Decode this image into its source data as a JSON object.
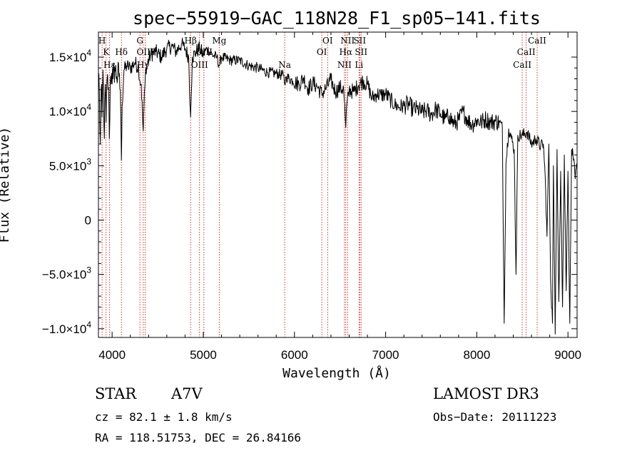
{
  "chart_data": {
    "type": "line",
    "title": "spec−55919−GAC_118N28_F1_sp05−141.fits",
    "xlabel": "Wavelength (Å)",
    "ylabel": "Flux (Relative)",
    "xlim": [
      3850,
      9100
    ],
    "ylim": [
      -10800,
      17300
    ],
    "xticks": [
      {
        "value": 4000,
        "label": "4000"
      },
      {
        "value": 5000,
        "label": "5000"
      },
      {
        "value": 6000,
        "label": "6000"
      },
      {
        "value": 7000,
        "label": "7000"
      },
      {
        "value": 8000,
        "label": "8000"
      },
      {
        "value": 9000,
        "label": "9000"
      }
    ],
    "yticks": [
      {
        "value": 15000,
        "mantissa": "1.5×10",
        "exp": "4"
      },
      {
        "value": 10000,
        "mantissa": "1.0×10",
        "exp": "4"
      },
      {
        "value": 5000,
        "mantissa": "5.0×10",
        "exp": "3"
      },
      {
        "value": 0,
        "mantissa": "0",
        "exp": ""
      },
      {
        "value": -5000,
        "mantissa": "−5.0×10",
        "exp": "3"
      },
      {
        "value": -10000,
        "mantissa": "−1.0×10",
        "exp": "4"
      }
    ],
    "lines": [
      {
        "name": "H",
        "wavelength": 3890,
        "row": 0
      },
      {
        "name": "K",
        "wavelength": 3934,
        "row": 1
      },
      {
        "name": "Hε",
        "wavelength": 3970,
        "row": 2
      },
      {
        "name": "Hδ",
        "wavelength": 4102,
        "row": 1
      },
      {
        "name": "G",
        "wavelength": 4305,
        "row": 0
      },
      {
        "name": "Hγ",
        "wavelength": 4341,
        "row": 2
      },
      {
        "name": "OIII",
        "wavelength": 4363,
        "row": 1
      },
      {
        "name": "Hβ",
        "wavelength": 4861,
        "row": 0
      },
      {
        "name": "OIII",
        "wavelength": 4959,
        "row": 2
      },
      {
        "name": "OIII",
        "wavelength": 5007,
        "row": 1
      },
      {
        "name": "Mg",
        "wavelength": 5175,
        "row": 0
      },
      {
        "name": "Na",
        "wavelength": 5893,
        "row": 2
      },
      {
        "name": "OI",
        "wavelength": 6300,
        "row": 1
      },
      {
        "name": "OI",
        "wavelength": 6364,
        "row": 0
      },
      {
        "name": "NII",
        "wavelength": 6548,
        "row": 2
      },
      {
        "name": "Hα",
        "wavelength": 6563,
        "row": 1
      },
      {
        "name": "NII",
        "wavelength": 6583,
        "row": 0
      },
      {
        "name": "Li",
        "wavelength": 6708,
        "row": 2
      },
      {
        "name": "SII",
        "wavelength": 6716,
        "row": 0
      },
      {
        "name": "SII",
        "wavelength": 6731,
        "row": 1
      },
      {
        "name": "CaII",
        "wavelength": 8498,
        "row": 2
      },
      {
        "name": "CaII",
        "wavelength": 8542,
        "row": 1
      },
      {
        "name": "CaII",
        "wavelength": 8662,
        "row": 0
      }
    ],
    "series": [
      {
        "name": "flux",
        "anchors": [
          [
            3855,
            13500
          ],
          [
            3870,
            7000
          ],
          [
            3885,
            12500
          ],
          [
            3890,
            9500
          ],
          [
            3900,
            13800
          ],
          [
            3915,
            7500
          ],
          [
            3925,
            12500
          ],
          [
            3934,
            9000
          ],
          [
            3945,
            13000
          ],
          [
            3960,
            12200
          ],
          [
            3970,
            7500
          ],
          [
            3980,
            12800
          ],
          [
            3995,
            13500
          ],
          [
            4010,
            13000
          ],
          [
            4030,
            14000
          ],
          [
            4050,
            13200
          ],
          [
            4080,
            13500
          ],
          [
            4095,
            9800
          ],
          [
            4102,
            5500
          ],
          [
            4110,
            10500
          ],
          [
            4130,
            13800
          ],
          [
            4160,
            14200
          ],
          [
            4200,
            14000
          ],
          [
            4250,
            14500
          ],
          [
            4290,
            14000
          ],
          [
            4305,
            12800
          ],
          [
            4320,
            12500
          ],
          [
            4333,
            9500
          ],
          [
            4341,
            8200
          ],
          [
            4350,
            10500
          ],
          [
            4370,
            14000
          ],
          [
            4420,
            15200
          ],
          [
            4480,
            15500
          ],
          [
            4540,
            15000
          ],
          [
            4600,
            15800
          ],
          [
            4660,
            16000
          ],
          [
            4700,
            15500
          ],
          [
            4760,
            16200
          ],
          [
            4800,
            15800
          ],
          [
            4840,
            15000
          ],
          [
            4855,
            10500
          ],
          [
            4861,
            9500
          ],
          [
            4868,
            11500
          ],
          [
            4880,
            15000
          ],
          [
            4920,
            15500
          ],
          [
            4960,
            15800
          ],
          [
            5000,
            15200
          ],
          [
            5040,
            15800
          ],
          [
            5100,
            15200
          ],
          [
            5150,
            15000
          ],
          [
            5175,
            14200
          ],
          [
            5200,
            15000
          ],
          [
            5300,
            14700
          ],
          [
            5400,
            14700
          ],
          [
            5500,
            14200
          ],
          [
            5600,
            14000
          ],
          [
            5700,
            13600
          ],
          [
            5800,
            13500
          ],
          [
            5880,
            13300
          ],
          [
            5893,
            12500
          ],
          [
            5910,
            13200
          ],
          [
            5980,
            12800
          ],
          [
            6050,
            12500
          ],
          [
            6100,
            13100
          ],
          [
            6150,
            12100
          ],
          [
            6200,
            12600
          ],
          [
            6250,
            12300
          ],
          [
            6300,
            11600
          ],
          [
            6350,
            12200
          ],
          [
            6400,
            12900
          ],
          [
            6450,
            11800
          ],
          [
            6500,
            12200
          ],
          [
            6540,
            12000
          ],
          [
            6556,
            9500
          ],
          [
            6563,
            8500
          ],
          [
            6570,
            10200
          ],
          [
            6600,
            12000
          ],
          [
            6650,
            11800
          ],
          [
            6700,
            12400
          ],
          [
            6750,
            12800
          ],
          [
            6800,
            12500
          ],
          [
            6850,
            11200
          ],
          [
            6900,
            11600
          ],
          [
            6950,
            11500
          ],
          [
            7000,
            11600
          ],
          [
            7050,
            11100
          ],
          [
            7100,
            10600
          ],
          [
            7150,
            10400
          ],
          [
            7200,
            10500
          ],
          [
            7250,
            10700
          ],
          [
            7300,
            10200
          ],
          [
            7350,
            10200
          ],
          [
            7400,
            9900
          ],
          [
            7450,
            10100
          ],
          [
            7500,
            9700
          ],
          [
            7550,
            10200
          ],
          [
            7600,
            9800
          ],
          [
            7650,
            9300
          ],
          [
            7700,
            9600
          ],
          [
            7750,
            8800
          ],
          [
            7800,
            9200
          ],
          [
            7850,
            10000
          ],
          [
            7900,
            9200
          ],
          [
            7950,
            8800
          ],
          [
            8000,
            9200
          ],
          [
            8050,
            9000
          ],
          [
            8100,
            9300
          ],
          [
            8150,
            9000
          ],
          [
            8200,
            9100
          ],
          [
            8250,
            9000
          ],
          [
            8280,
            8500
          ],
          [
            8300,
            -9500
          ],
          [
            8320,
            5200
          ],
          [
            8350,
            8400
          ],
          [
            8380,
            7500
          ],
          [
            8410,
            6500
          ],
          [
            8430,
            -5000
          ],
          [
            8450,
            7800
          ],
          [
            8500,
            7800
          ],
          [
            8550,
            8100
          ],
          [
            8600,
            7000
          ],
          [
            8650,
            7500
          ],
          [
            8700,
            6800
          ],
          [
            8730,
            7000
          ],
          [
            8750,
            4000
          ],
          [
            8770,
            -1500
          ],
          [
            8790,
            7000
          ],
          [
            8810,
            -5500
          ],
          [
            8830,
            -9500
          ],
          [
            8840,
            5000
          ],
          [
            8860,
            -10500
          ],
          [
            8880,
            6500
          ],
          [
            8900,
            -7500
          ],
          [
            8920,
            4500
          ],
          [
            8940,
            -8000
          ],
          [
            8960,
            6000
          ],
          [
            8980,
            -6500
          ],
          [
            9000,
            4500
          ],
          [
            9020,
            -9500
          ],
          [
            9040,
            6500
          ],
          [
            9060,
            5500
          ],
          [
            9080,
            3800
          ],
          [
            9100,
            5200
          ]
        ]
      }
    ]
  },
  "info": {
    "object_type": "STAR",
    "subclass": "A7V",
    "cz": "cz = 82.1 ± 1.8 km/s",
    "radec": "RA = 118.51753, DEC =  26.84166",
    "survey": "LAMOST DR3",
    "obs_date": "Obs−Date: 20111223"
  },
  "colors": {
    "spectrum": "#000000",
    "line_marker": "#c00000",
    "axis": "#000000"
  }
}
